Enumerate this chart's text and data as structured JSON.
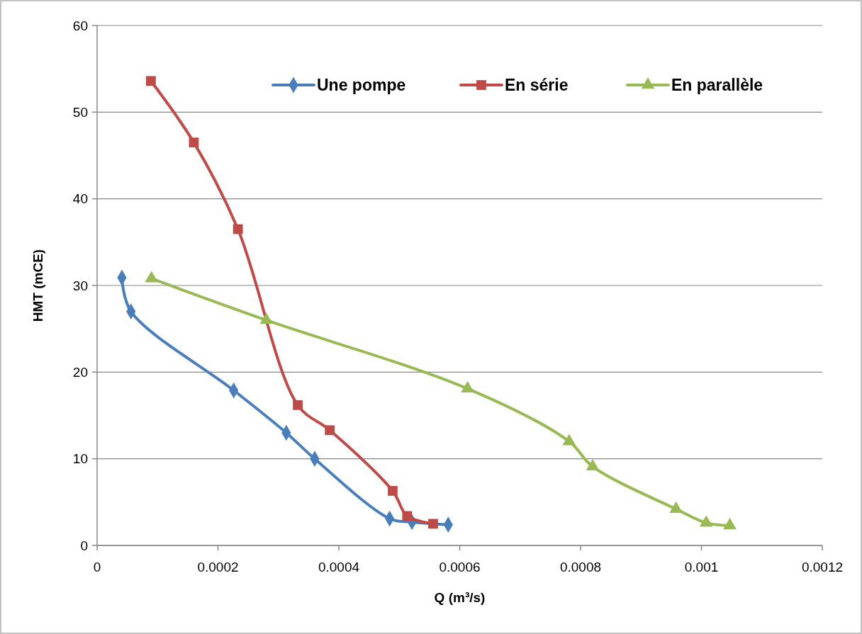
{
  "chart_data": {
    "type": "line",
    "xlabel": "Q (m³/s)",
    "ylabel": "HMT (mCE)",
    "xlim": [
      0,
      0.0012
    ],
    "xticks": [
      0,
      0.0002,
      0.0004,
      0.0006,
      0.0008,
      0.001,
      0.0012
    ],
    "ylim": [
      0,
      60
    ],
    "yticks": [
      0,
      10,
      20,
      30,
      40,
      50,
      60
    ],
    "grid": "y",
    "legend": "top right",
    "line_style": "solid",
    "series": [
      {
        "name": "Une pompe",
        "color": "#4a7ebb",
        "marker": "diamond",
        "x": [
          4.1e-05,
          5.6e-05,
          0.000226,
          0.000313,
          0.00036,
          0.000484,
          0.000521,
          0.000581
        ],
        "values": [
          30.9,
          27.0,
          17.9,
          13.0,
          10.0,
          3.1,
          2.7,
          2.4
        ]
      },
      {
        "name": "En série",
        "color": "#be4b48",
        "marker": "square",
        "x": [
          8.9e-05,
          0.00016,
          0.000233,
          0.000332,
          0.000385,
          0.000489,
          0.000513,
          0.000556
        ],
        "values": [
          53.6,
          46.5,
          36.5,
          16.2,
          13.3,
          6.3,
          3.4,
          2.5
        ]
      },
      {
        "name": "En parallèle",
        "color": "#98b954",
        "marker": "triangle",
        "x": [
          9e-05,
          0.00028,
          0.000613,
          0.000781,
          0.00082,
          0.000958,
          0.001008,
          0.001047
        ],
        "values": [
          30.8,
          26.0,
          18.1,
          12.0,
          9.1,
          4.2,
          2.6,
          2.3
        ]
      }
    ]
  }
}
